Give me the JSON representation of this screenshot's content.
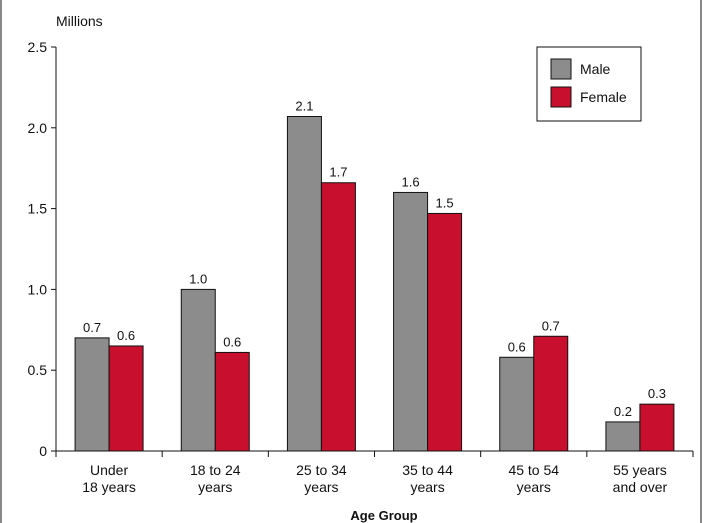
{
  "chart_data": {
    "type": "bar",
    "unit_label": "Millions",
    "xlabel": "Age Group",
    "ylabel": "",
    "ylim": [
      0,
      2.5
    ],
    "yticks": [
      "0",
      "0.5",
      "1.0",
      "1.5",
      "2.0",
      "2.5"
    ],
    "ytick_values": [
      0,
      0.5,
      1.0,
      1.5,
      2.0,
      2.5
    ],
    "categories": [
      [
        "Under",
        "18 years"
      ],
      [
        "18 to 24",
        "years"
      ],
      [
        "25 to 34",
        "years"
      ],
      [
        "35 to 44",
        "years"
      ],
      [
        "45 to 54",
        "years"
      ],
      [
        "55 years",
        "and over"
      ]
    ],
    "series": [
      {
        "name": "Male",
        "color": "#8c8c8c",
        "values": [
          0.7,
          1.0,
          2.07,
          1.6,
          0.58,
          0.18
        ],
        "labels": [
          "0.7",
          "1.0",
          "2.1",
          "1.6",
          "0.6",
          "0.2"
        ]
      },
      {
        "name": "Female",
        "color": "#c8102e",
        "values": [
          0.65,
          0.61,
          1.66,
          1.47,
          0.71,
          0.29
        ],
        "labels": [
          "0.6",
          "0.6",
          "1.7",
          "1.5",
          "0.7",
          "0.3"
        ]
      }
    ],
    "legend_position": "top-right",
    "grid": false
  }
}
